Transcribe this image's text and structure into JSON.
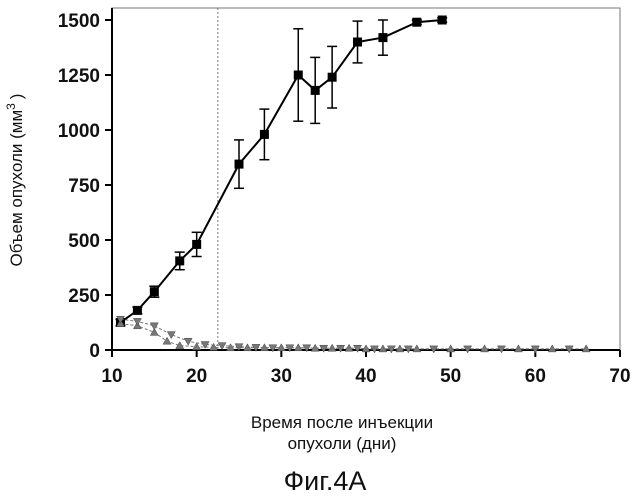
{
  "chart_data": {
    "type": "line",
    "xlabel_line1": "Время после инъекции",
    "xlabel_line2": "опухоли (дни)",
    "ylabel": "Объем опухоли (мм",
    "ylabel_sup": "3",
    "ylabel_end": ")",
    "caption": "Фиг.4А",
    "xlim": [
      10,
      70
    ],
    "ylim": [
      0,
      1500
    ],
    "xticks": [
      10,
      20,
      30,
      40,
      50,
      60,
      70
    ],
    "xtick_labels": [
      "10",
      "20",
      "30",
      "40",
      "50",
      "60",
      "70"
    ],
    "yticks": [
      0,
      250,
      500,
      750,
      1000,
      1250,
      1500
    ],
    "ytick_labels": [
      "0",
      "250",
      "500",
      "750",
      "1000",
      "1250",
      "1500"
    ],
    "vline_x": 22.5,
    "series": [
      {
        "marker": "square",
        "color": "#000000",
        "x": [
          11,
          13,
          15,
          18,
          20,
          25,
          28,
          32,
          34,
          36,
          39,
          42,
          46,
          49
        ],
        "y": [
          125,
          180,
          265,
          405,
          480,
          845,
          980,
          1250,
          1180,
          1240,
          1400,
          1420,
          1490,
          1500
        ],
        "err": [
          15,
          15,
          25,
          40,
          55,
          110,
          115,
          210,
          150,
          140,
          95,
          80,
          10,
          10
        ]
      },
      {
        "marker": "triangle-up",
        "color": "#777777",
        "x": [
          11,
          13,
          15,
          16.5,
          18,
          20,
          22,
          24,
          26,
          28,
          30,
          32,
          34,
          36,
          38,
          40,
          42,
          44,
          46,
          50,
          54,
          58,
          62,
          66
        ],
        "y": [
          120,
          110,
          80,
          40,
          20,
          15,
          12,
          10,
          10,
          10,
          10,
          10,
          8,
          8,
          8,
          5,
          5,
          5,
          5,
          5,
          5,
          5,
          5,
          5
        ]
      },
      {
        "marker": "triangle-down",
        "color": "#777777",
        "x": [
          11,
          13,
          15,
          17,
          19,
          21,
          23,
          25,
          27,
          29,
          31,
          33,
          35,
          37,
          39,
          41,
          43,
          45,
          48,
          52,
          56,
          60,
          64
        ],
        "y": [
          140,
          130,
          110,
          70,
          40,
          25,
          20,
          15,
          12,
          10,
          10,
          10,
          8,
          8,
          8,
          5,
          5,
          5,
          5,
          5,
          5,
          5,
          5
        ]
      }
    ]
  }
}
